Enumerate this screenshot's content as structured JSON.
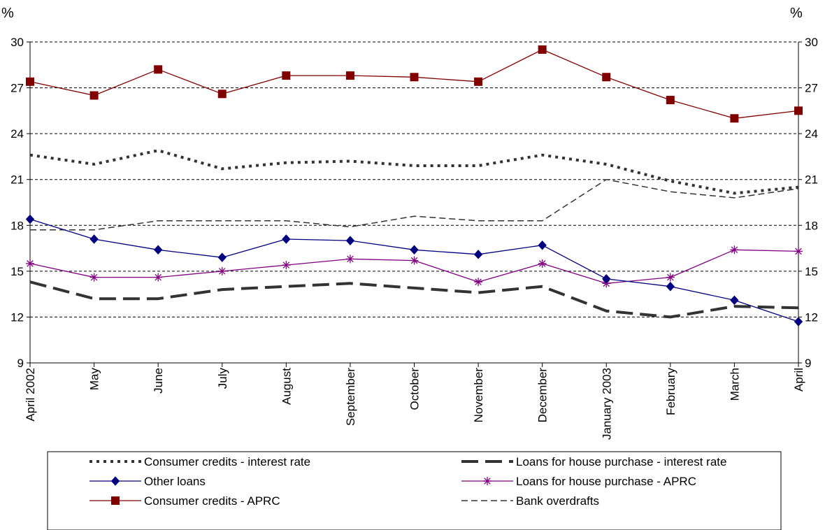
{
  "chart_data": {
    "type": "line",
    "unit_left": "%",
    "unit_right": "%",
    "categories": [
      "April 2002",
      "May",
      "June",
      "July",
      "August",
      "September",
      "October",
      "November",
      "December",
      "January 2003",
      "February",
      "March",
      "April"
    ],
    "ylim": [
      9,
      30
    ],
    "yticks": [
      "9",
      "12",
      "15",
      "18",
      "21",
      "24",
      "27",
      "30"
    ],
    "grid": "horizontal dashed",
    "legend_position": "bottom",
    "series": [
      {
        "name": "Consumer credits - interest rate",
        "style": "dotted-thick",
        "color": "#333333",
        "values": [
          22.6,
          22.0,
          22.9,
          21.7,
          22.1,
          22.2,
          21.9,
          21.9,
          22.6,
          22.0,
          20.9,
          20.1,
          20.5
        ]
      },
      {
        "name": "Loans for house purchase - interest rate",
        "style": "dashed-thick",
        "color": "#333333",
        "values": [
          14.3,
          13.2,
          13.2,
          13.8,
          14.0,
          14.2,
          13.9,
          13.6,
          14.0,
          12.4,
          12.0,
          12.7,
          12.6
        ]
      },
      {
        "name": "Other loans",
        "style": "line-diamond",
        "color": "#000080",
        "values": [
          18.4,
          17.1,
          16.4,
          15.9,
          17.1,
          17.0,
          16.4,
          16.1,
          16.7,
          14.5,
          14.0,
          13.1,
          11.7
        ]
      },
      {
        "name": "Loans for house purchase - APRC",
        "style": "line-star",
        "color": "#800080",
        "values": [
          15.5,
          14.6,
          14.6,
          15.0,
          15.4,
          15.8,
          15.7,
          14.3,
          15.5,
          14.2,
          14.6,
          16.4,
          16.3
        ]
      },
      {
        "name": "Consumer credits - APRC",
        "style": "line-square",
        "color": "#800000",
        "values": [
          27.4,
          26.5,
          28.2,
          26.6,
          27.8,
          27.8,
          27.7,
          27.4,
          29.5,
          27.7,
          26.2,
          25.0,
          25.5
        ]
      },
      {
        "name": "Bank overdrafts",
        "style": "dashed-thin",
        "color": "#333333",
        "values": [
          17.7,
          17.7,
          18.3,
          18.3,
          18.3,
          17.9,
          18.6,
          18.3,
          18.3,
          21.0,
          20.2,
          19.8,
          20.4
        ]
      }
    ]
  }
}
